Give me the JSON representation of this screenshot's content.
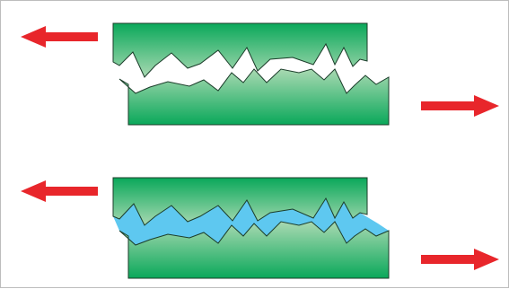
{
  "title": "",
  "panels": [
    {
      "id": "dry-contact",
      "gap_fill": "white",
      "gap_color": "#ffffff"
    },
    {
      "id": "fluid-filled-contact",
      "gap_fill": "fluid",
      "gap_color": "#5ec8f0"
    }
  ],
  "colors": {
    "block_green_light": "#9ed2a8",
    "block_green_dark": "#0aa85a",
    "outline": "#1b3d2a",
    "arrow_red": "#e8262b",
    "frame_border": "#bdbdbd"
  },
  "icons": {
    "left_arrow": "arrow-left-icon",
    "right_arrow": "arrow-right-icon"
  }
}
